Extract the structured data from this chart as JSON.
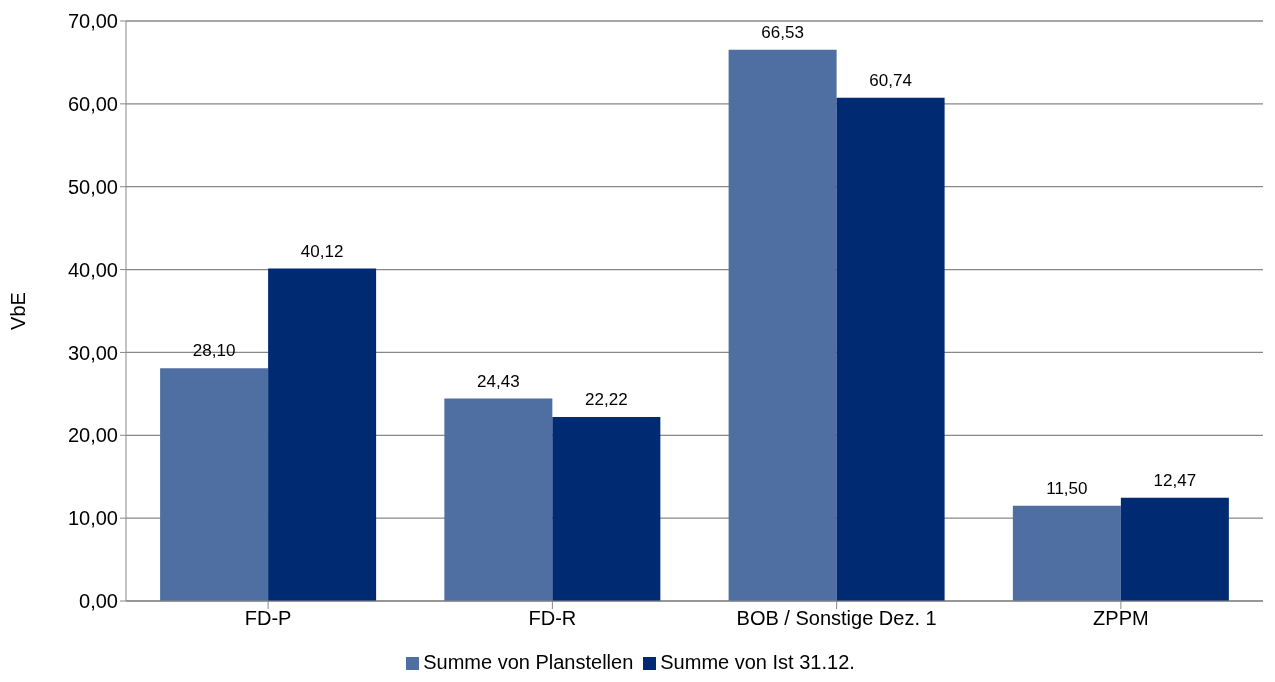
{
  "chart_data": {
    "type": "bar",
    "ylabel": "VbE",
    "categories": [
      "FD-P",
      "FD-R",
      "BOB / Sonstige Dez. 1",
      "ZPPM"
    ],
    "series": [
      {
        "name": "Summe von Planstellen",
        "color": "#4f6fa3",
        "values": [
          28.1,
          24.43,
          66.53,
          11.5
        ],
        "value_labels": [
          "28,10",
          "24,43",
          "66,53",
          "11,50"
        ]
      },
      {
        "name": "Summe von Ist 31.12.",
        "color": "#002b73",
        "values": [
          40.12,
          22.22,
          60.74,
          12.47
        ],
        "value_labels": [
          "40,12",
          "22,22",
          "60,74",
          "12,47"
        ]
      }
    ],
    "ylim": [
      0,
      70
    ],
    "yticks": [
      {
        "value": 0,
        "label": "0,00"
      },
      {
        "value": 10,
        "label": "10,00"
      },
      {
        "value": 20,
        "label": "20,00"
      },
      {
        "value": 30,
        "label": "30,00"
      },
      {
        "value": 40,
        "label": "40,00"
      },
      {
        "value": 50,
        "label": "50,00"
      },
      {
        "value": 60,
        "label": "60,00"
      },
      {
        "value": 70,
        "label": "70,00"
      }
    ],
    "grid": "y",
    "legend": "bottom"
  }
}
